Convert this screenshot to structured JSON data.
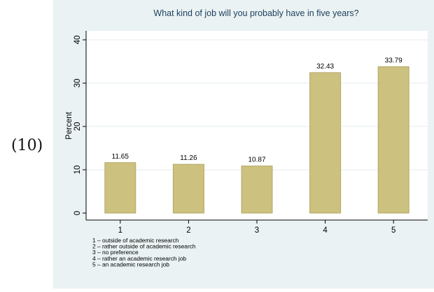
{
  "equation_number": "(10)",
  "chart_data": {
    "type": "bar",
    "title": "What kind of job will you probably have in five years?",
    "xlabel": "",
    "ylabel": "Percent",
    "categories": [
      "1",
      "2",
      "3",
      "4",
      "5"
    ],
    "values": [
      11.65,
      11.26,
      10.87,
      32.43,
      33.79
    ],
    "data_labels": [
      "11.65",
      "11.26",
      "10.87",
      "32.43",
      "33.79"
    ],
    "yticks": [
      0,
      10,
      20,
      30,
      40
    ],
    "ylim": [
      0,
      40
    ],
    "grid": true,
    "legend_note": [
      "1 – outside of academic research",
      "2 – rather outside of academic research",
      "3 – no preference",
      "4 – rather an academic research job",
      "5 – an academic research job"
    ],
    "colors": {
      "background": "#eaf2f3",
      "plot": "#ffffff",
      "bar": "#cdc17f",
      "bar_edge": "#b2a868",
      "grid": "#e4ecee",
      "title": "#1c3e5c"
    }
  }
}
